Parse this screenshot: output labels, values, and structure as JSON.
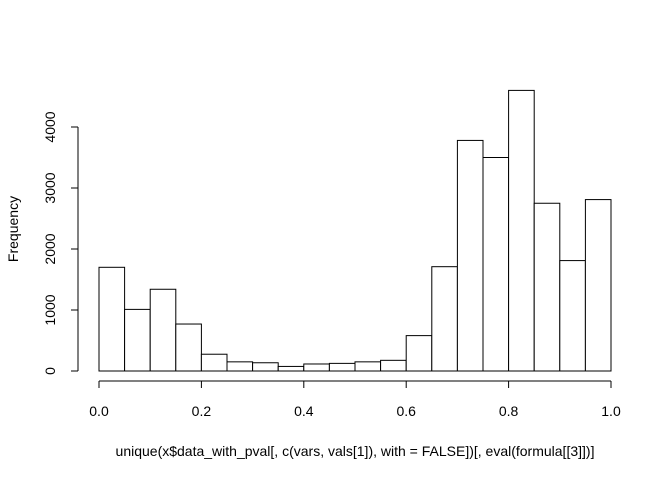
{
  "chart_data": {
    "type": "bar",
    "subtype": "histogram",
    "title": "",
    "xlabel": "unique(x$data_with_pval[, c(vars, vals[1]), with = FALSE])[, eval(formula[[3]])]",
    "ylabel": "Frequency",
    "xlim": [
      0,
      1
    ],
    "ylim": [
      0,
      4600
    ],
    "bin_width": 0.05,
    "bin_edges": [
      0,
      0.05,
      0.1,
      0.15,
      0.2,
      0.25,
      0.3,
      0.35,
      0.4,
      0.45,
      0.5,
      0.55,
      0.6,
      0.65,
      0.7,
      0.75,
      0.8,
      0.85,
      0.9,
      0.95,
      1.0
    ],
    "values": [
      1700,
      1010,
      1340,
      770,
      275,
      150,
      135,
      75,
      115,
      125,
      150,
      175,
      580,
      1710,
      3780,
      3500,
      4600,
      2750,
      1810,
      2810
    ],
    "x_ticks": [
      0,
      0.2,
      0.4,
      0.6,
      0.8,
      1.0
    ],
    "x_tick_labels": [
      "0.0",
      "0.2",
      "0.4",
      "0.6",
      "0.8",
      "1.0"
    ],
    "y_ticks": [
      0,
      1000,
      2000,
      3000,
      4000
    ],
    "y_tick_labels": [
      "0",
      "1000",
      "2000",
      "3000",
      "4000"
    ],
    "grid": false,
    "legend": "none",
    "colors": {
      "bar_fill": "#ffffff",
      "bar_stroke": "#000000"
    }
  }
}
